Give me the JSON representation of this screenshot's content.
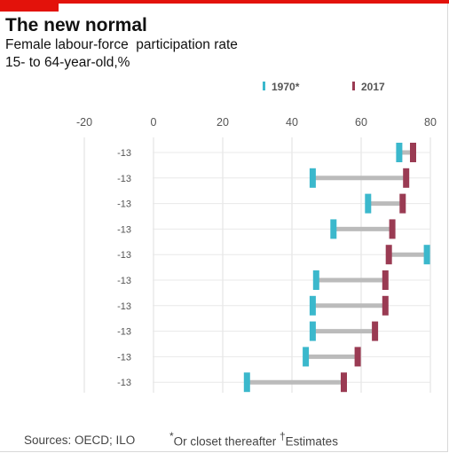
{
  "title": "The new normal",
  "subtitle_line1": "Female labour-force  participation rate",
  "subtitle_line2": "15- to 64-year-old,%",
  "legend": [
    {
      "label": "1970*",
      "color": "#3bb8cc"
    },
    {
      "label": "2017",
      "color": "#9a3b53"
    }
  ],
  "footer": {
    "source": "Sources: OECD; ILO",
    "note_marker": "*",
    "note_text": "Or closet thereafter ",
    "estimate_marker": "†",
    "estimate_text": "Estimates"
  },
  "chart_data": {
    "type": "dumbbell",
    "xlim": [
      -20,
      80
    ],
    "xticks": [
      -20,
      0,
      20,
      40,
      60,
      80
    ],
    "grid": true,
    "legend_position": "top",
    "connector_color": "#bbbbbb",
    "categories": [
      "-13",
      "-13",
      "-13",
      "-13",
      "-13",
      "-13",
      "-13",
      "-13",
      "-13",
      "-13"
    ],
    "series": [
      {
        "name": "1970*",
        "color": "#3bb8cc",
        "values": [
          71,
          46,
          62,
          52,
          79,
          47,
          46,
          46,
          44,
          27
        ]
      },
      {
        "name": "2017",
        "color": "#9a3b53",
        "values": [
          75,
          73,
          72,
          69,
          68,
          67,
          67,
          64,
          59,
          55
        ]
      }
    ]
  }
}
